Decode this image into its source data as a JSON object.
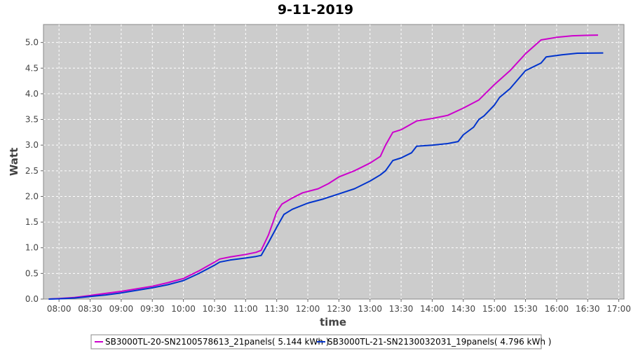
{
  "chart_data": {
    "type": "line",
    "title": "9-11-2019",
    "xlabel": "time",
    "ylabel": "Watt",
    "x_ticks": [
      "08:00",
      "08:30",
      "09:00",
      "09:30",
      "10:00",
      "10:30",
      "11:00",
      "11:30",
      "12:00",
      "12:30",
      "13:00",
      "13:30",
      "14:00",
      "14:30",
      "15:00",
      "15:30",
      "16:00",
      "16:30",
      "17:00"
    ],
    "x_range": [
      "07:45",
      "17:05"
    ],
    "ylim": [
      0,
      5.35
    ],
    "y_ticks": [
      0.0,
      0.5,
      1.0,
      1.5,
      2.0,
      2.5,
      3.0,
      3.5,
      4.0,
      4.5,
      5.0
    ],
    "grid": true,
    "legend_position": "bottom",
    "colors": {
      "plot_background": "#cccccc",
      "grid": "#ffffff"
    },
    "series": [
      {
        "name": "SB3000TL-20-SN2100578613_21panels( 5.144 kWh )",
        "color": "#cc00cc",
        "points": [
          [
            "07:50",
            0.0
          ],
          [
            "08:00",
            0.01
          ],
          [
            "08:15",
            0.03
          ],
          [
            "08:30",
            0.07
          ],
          [
            "08:45",
            0.11
          ],
          [
            "09:00",
            0.15
          ],
          [
            "09:15",
            0.2
          ],
          [
            "09:30",
            0.25
          ],
          [
            "09:45",
            0.32
          ],
          [
            "10:00",
            0.4
          ],
          [
            "10:15",
            0.55
          ],
          [
            "10:30",
            0.72
          ],
          [
            "10:35",
            0.78
          ],
          [
            "10:45",
            0.82
          ],
          [
            "11:00",
            0.87
          ],
          [
            "11:10",
            0.91
          ],
          [
            "11:15",
            0.95
          ],
          [
            "11:22",
            1.25
          ],
          [
            "11:30",
            1.7
          ],
          [
            "11:35",
            1.85
          ],
          [
            "11:45",
            1.97
          ],
          [
            "11:55",
            2.07
          ],
          [
            "12:10",
            2.15
          ],
          [
            "12:20",
            2.25
          ],
          [
            "12:30",
            2.38
          ],
          [
            "12:45",
            2.5
          ],
          [
            "13:00",
            2.65
          ],
          [
            "13:10",
            2.78
          ],
          [
            "13:15",
            3.0
          ],
          [
            "13:22",
            3.25
          ],
          [
            "13:30",
            3.3
          ],
          [
            "13:45",
            3.47
          ],
          [
            "14:00",
            3.52
          ],
          [
            "14:15",
            3.58
          ],
          [
            "14:30",
            3.72
          ],
          [
            "14:45",
            3.88
          ],
          [
            "15:00",
            4.18
          ],
          [
            "15:15",
            4.45
          ],
          [
            "15:30",
            4.78
          ],
          [
            "15:45",
            5.05
          ],
          [
            "16:00",
            5.1
          ],
          [
            "16:15",
            5.13
          ],
          [
            "16:30",
            5.14
          ],
          [
            "16:40",
            5.144
          ]
        ]
      },
      {
        "name": "SB3000TL-21-SN2130032031_19panels( 4.796 kWh )",
        "color": "#0033cc",
        "points": [
          [
            "07:50",
            0.0
          ],
          [
            "08:00",
            0.005
          ],
          [
            "08:15",
            0.02
          ],
          [
            "08:30",
            0.05
          ],
          [
            "08:45",
            0.08
          ],
          [
            "09:00",
            0.12
          ],
          [
            "09:15",
            0.17
          ],
          [
            "09:30",
            0.22
          ],
          [
            "09:45",
            0.28
          ],
          [
            "10:00",
            0.36
          ],
          [
            "10:15",
            0.5
          ],
          [
            "10:30",
            0.66
          ],
          [
            "10:35",
            0.72
          ],
          [
            "10:45",
            0.76
          ],
          [
            "11:00",
            0.8
          ],
          [
            "11:10",
            0.83
          ],
          [
            "11:15",
            0.85
          ],
          [
            "11:22",
            1.1
          ],
          [
            "11:30",
            1.4
          ],
          [
            "11:37",
            1.65
          ],
          [
            "11:45",
            1.75
          ],
          [
            "12:00",
            1.87
          ],
          [
            "12:15",
            1.95
          ],
          [
            "12:30",
            2.05
          ],
          [
            "12:45",
            2.15
          ],
          [
            "13:00",
            2.3
          ],
          [
            "13:10",
            2.42
          ],
          [
            "13:15",
            2.5
          ],
          [
            "13:22",
            2.7
          ],
          [
            "13:30",
            2.75
          ],
          [
            "13:40",
            2.85
          ],
          [
            "13:45",
            2.98
          ],
          [
            "14:00",
            3.0
          ],
          [
            "14:15",
            3.03
          ],
          [
            "14:25",
            3.07
          ],
          [
            "14:30",
            3.2
          ],
          [
            "14:40",
            3.35
          ],
          [
            "14:45",
            3.5
          ],
          [
            "14:50",
            3.57
          ],
          [
            "15:00",
            3.78
          ],
          [
            "15:05",
            3.93
          ],
          [
            "15:15",
            4.1
          ],
          [
            "15:30",
            4.45
          ],
          [
            "15:45",
            4.6
          ],
          [
            "15:50",
            4.72
          ],
          [
            "16:05",
            4.76
          ],
          [
            "16:20",
            4.79
          ],
          [
            "16:45",
            4.796
          ]
        ]
      }
    ]
  }
}
